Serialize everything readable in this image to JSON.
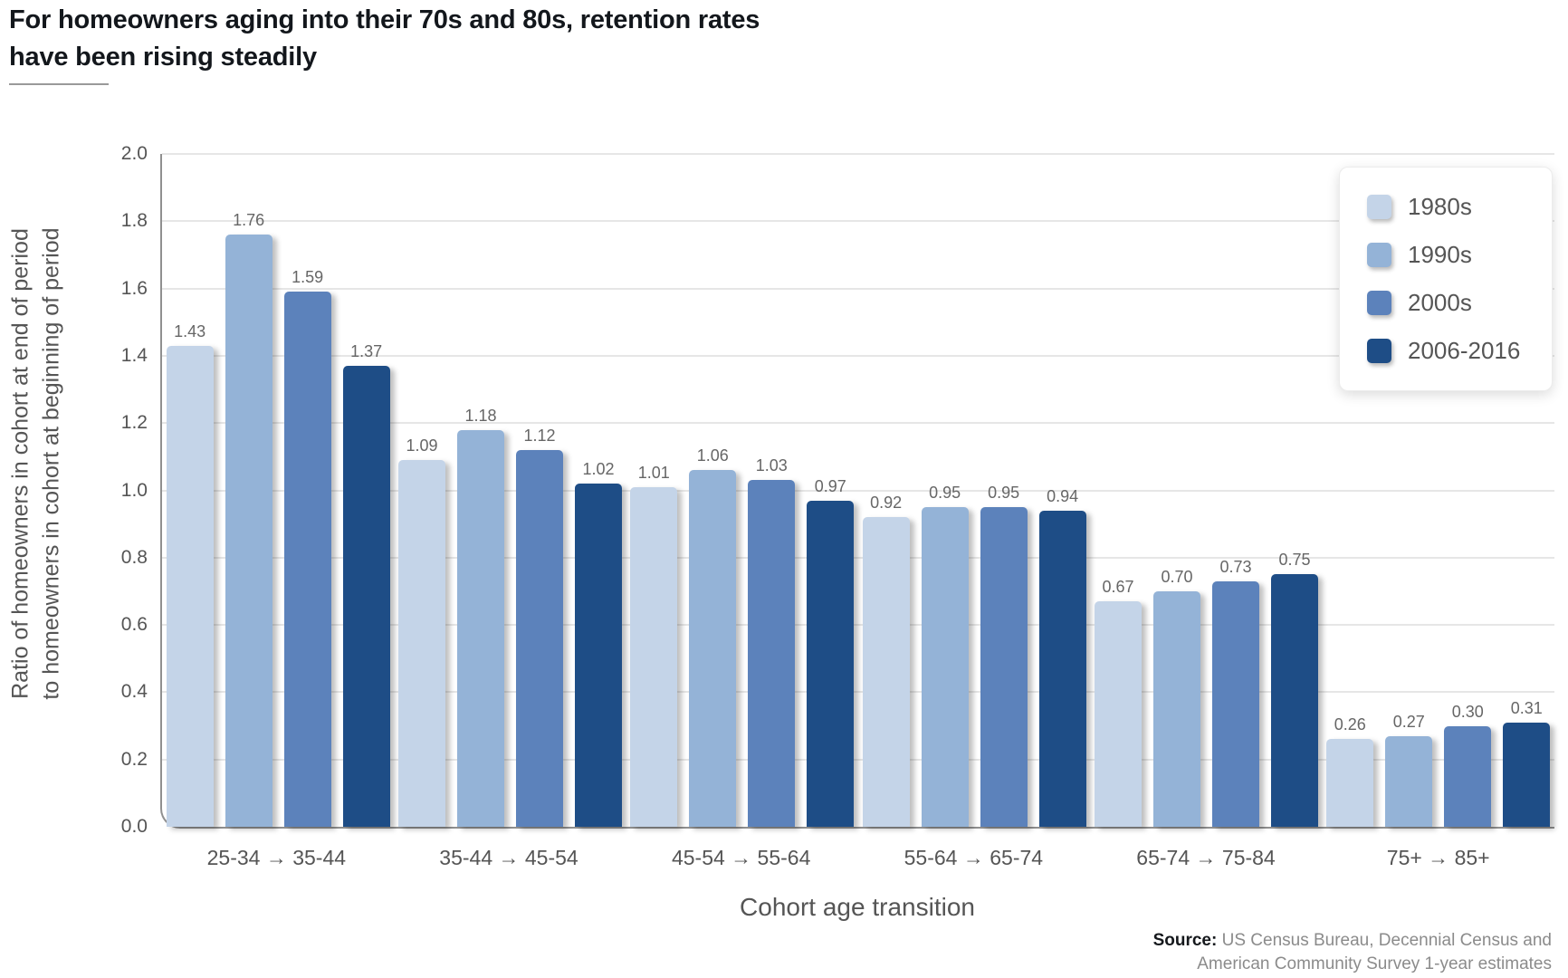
{
  "header": {
    "title_line1": "For homeowners aging into their 70s and 80s, retention rates",
    "title_line2": "have been rising steadily"
  },
  "chart_data": {
    "type": "bar",
    "title": "For homeowners aging into their 70s and 80s, retention rates have been rising steadily",
    "categories": [
      "25-34 → 35-44",
      "35-44 → 45-54",
      "45-54 → 55-64",
      "55-64 → 65-74",
      "65-74 → 75-84",
      "75+ → 85+"
    ],
    "series": [
      {
        "name": "1980s",
        "color": "#c4d4e8",
        "values": [
          1.43,
          1.09,
          1.01,
          0.92,
          0.67,
          0.26
        ]
      },
      {
        "name": "1990s",
        "color": "#94b3d7",
        "values": [
          1.76,
          1.18,
          1.06,
          0.95,
          0.7,
          0.27
        ]
      },
      {
        "name": "2000s",
        "color": "#5c82bb",
        "values": [
          1.59,
          1.12,
          1.03,
          0.95,
          0.73,
          0.3
        ]
      },
      {
        "name": "2006-2016",
        "color": "#1e4d86",
        "values": [
          1.37,
          1.02,
          0.97,
          0.94,
          0.75,
          0.31
        ]
      }
    ],
    "xlabel": "Cohort age transition",
    "ylabel_lines": [
      "Ratio of homeowners in cohort at end of period",
      "to homeowners in cohort at beginning of period"
    ],
    "ylim": [
      0.0,
      2.0
    ],
    "yticks": [
      "2.0",
      "1.8",
      "1.6",
      "1.4",
      "1.2",
      "1.0",
      "0.8",
      "0.6",
      "0.4",
      "0.2",
      "0.0"
    ],
    "grid": true,
    "legend_position": "top-right",
    "value_label_decimals": 2
  },
  "source": {
    "label": "Source:",
    "text": "US Census Bureau, Decennial Census and American Community Survey 1-year estimates"
  }
}
